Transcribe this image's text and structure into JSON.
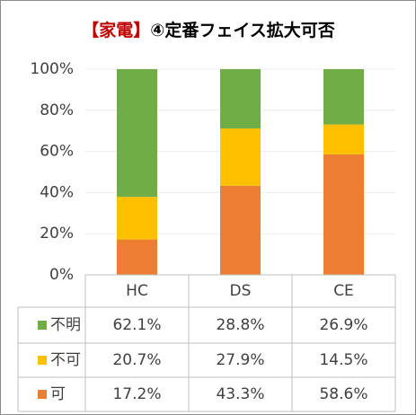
{
  "chart_data": {
    "type": "stacked_bar_table",
    "title": [
      "【家電】",
      "④定番フェイス拡大可否"
    ],
    "title_colors": [
      "#c00000",
      "#000000"
    ],
    "categories": [
      "HC",
      "DS",
      "CE"
    ],
    "series": [
      {
        "name": "可",
        "color": "#ed7d31",
        "values": [
          17.2,
          43.3,
          58.6
        ],
        "value_labels": [
          "17.2%",
          "43.3%",
          "58.6%"
        ]
      },
      {
        "name": "不可",
        "color": "#ffc000",
        "values": [
          20.7,
          27.9,
          14.5
        ],
        "value_labels": [
          "20.7%",
          "27.9%",
          "14.5%"
        ]
      },
      {
        "name": "不明",
        "color": "#70ad47",
        "values": [
          62.1,
          28.8,
          26.9
        ],
        "value_labels": [
          "62.1%",
          "28.8%",
          "26.9%"
        ]
      }
    ],
    "ylim": [
      0,
      100
    ],
    "yticks": [
      {
        "value": 0,
        "label": "0%"
      },
      {
        "value": 20,
        "label": "20%"
      },
      {
        "value": 40,
        "label": "40%"
      },
      {
        "value": 60,
        "label": "60%"
      },
      {
        "value": 80,
        "label": "80%"
      },
      {
        "value": 100,
        "label": "100%"
      }
    ],
    "grid": true
  }
}
